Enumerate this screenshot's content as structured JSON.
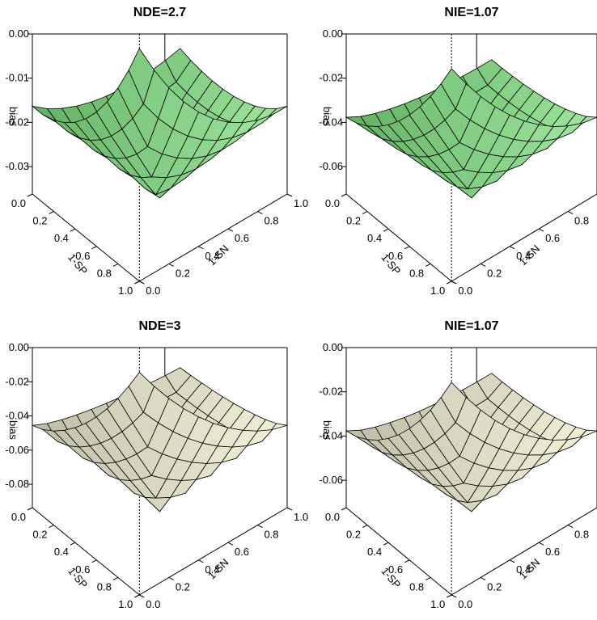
{
  "chart_data": [
    {
      "type": "surface3d",
      "title": "NDE=2.7",
      "xlabel": "1-SP",
      "ylabel": "1-SN",
      "zlabel": "bias",
      "x_ticks": [
        "0.0",
        "0.2",
        "0.4",
        "0.6",
        "0.8",
        "1.0"
      ],
      "y_ticks": [
        "0.0",
        "0.2",
        "0.4",
        "0.6",
        "0.8",
        "1.0"
      ],
      "z_ticks": [
        "0.00",
        "-0.01",
        "-0.02",
        "-0.03"
      ],
      "z_min": -0.035,
      "color_light": "#a8eda8",
      "color_dark": "#5aa85a",
      "x_range": [
        0,
        1
      ],
      "y_range": [
        0,
        1
      ]
    },
    {
      "type": "surface3d",
      "title": "NIE=1.07",
      "xlabel": "1-SP",
      "ylabel": "1-SN",
      "zlabel": "bias",
      "x_ticks": [
        "0.0",
        "0.2",
        "0.4",
        "0.6",
        "0.8",
        "1.0"
      ],
      "y_ticks": [
        "0.0",
        "0.2",
        "0.4",
        "0.6",
        "0.8",
        "1.0"
      ],
      "z_ticks": [
        "0.00",
        "-0.02",
        "-0.04",
        "-0.06"
      ],
      "z_min": -0.07,
      "color_light": "#a8eda8",
      "color_dark": "#5aa85a",
      "x_range": [
        0,
        1
      ],
      "y_range": [
        0,
        1
      ]
    },
    {
      "type": "surface3d",
      "title": "NDE=3",
      "xlabel": "1-SP",
      "ylabel": "1-SN",
      "zlabel": "bias",
      "x_ticks": [
        "0.0",
        "0.2",
        "0.4",
        "0.6",
        "0.8",
        "1.0"
      ],
      "y_ticks": [
        "0.0",
        "0.2",
        "0.4",
        "0.6",
        "0.8",
        "1.0"
      ],
      "z_ticks": [
        "0.00",
        "-0.02",
        "-0.04",
        "-0.06",
        "-0.08"
      ],
      "z_min": -0.09,
      "color_light": "#fafae0",
      "color_dark": "#b5b5a0",
      "x_range": [
        0,
        1
      ],
      "y_range": [
        0,
        1
      ]
    },
    {
      "type": "surface3d",
      "title": "NIE=1.07",
      "xlabel": "1-SP",
      "ylabel": "1-SN",
      "zlabel": "bias",
      "x_ticks": [
        "0.0",
        "0.2",
        "0.4",
        "0.6",
        "0.8",
        "1.0"
      ],
      "y_ticks": [
        "0.0",
        "0.2",
        "0.4",
        "0.6",
        "0.8",
        "1.0"
      ],
      "z_ticks": [
        "0.00",
        "-0.02",
        "-0.04",
        "-0.06"
      ],
      "z_min": -0.07,
      "color_light": "#fafae0",
      "color_dark": "#b5b5a0",
      "x_range": [
        0,
        1
      ],
      "y_range": [
        0,
        1
      ]
    }
  ]
}
